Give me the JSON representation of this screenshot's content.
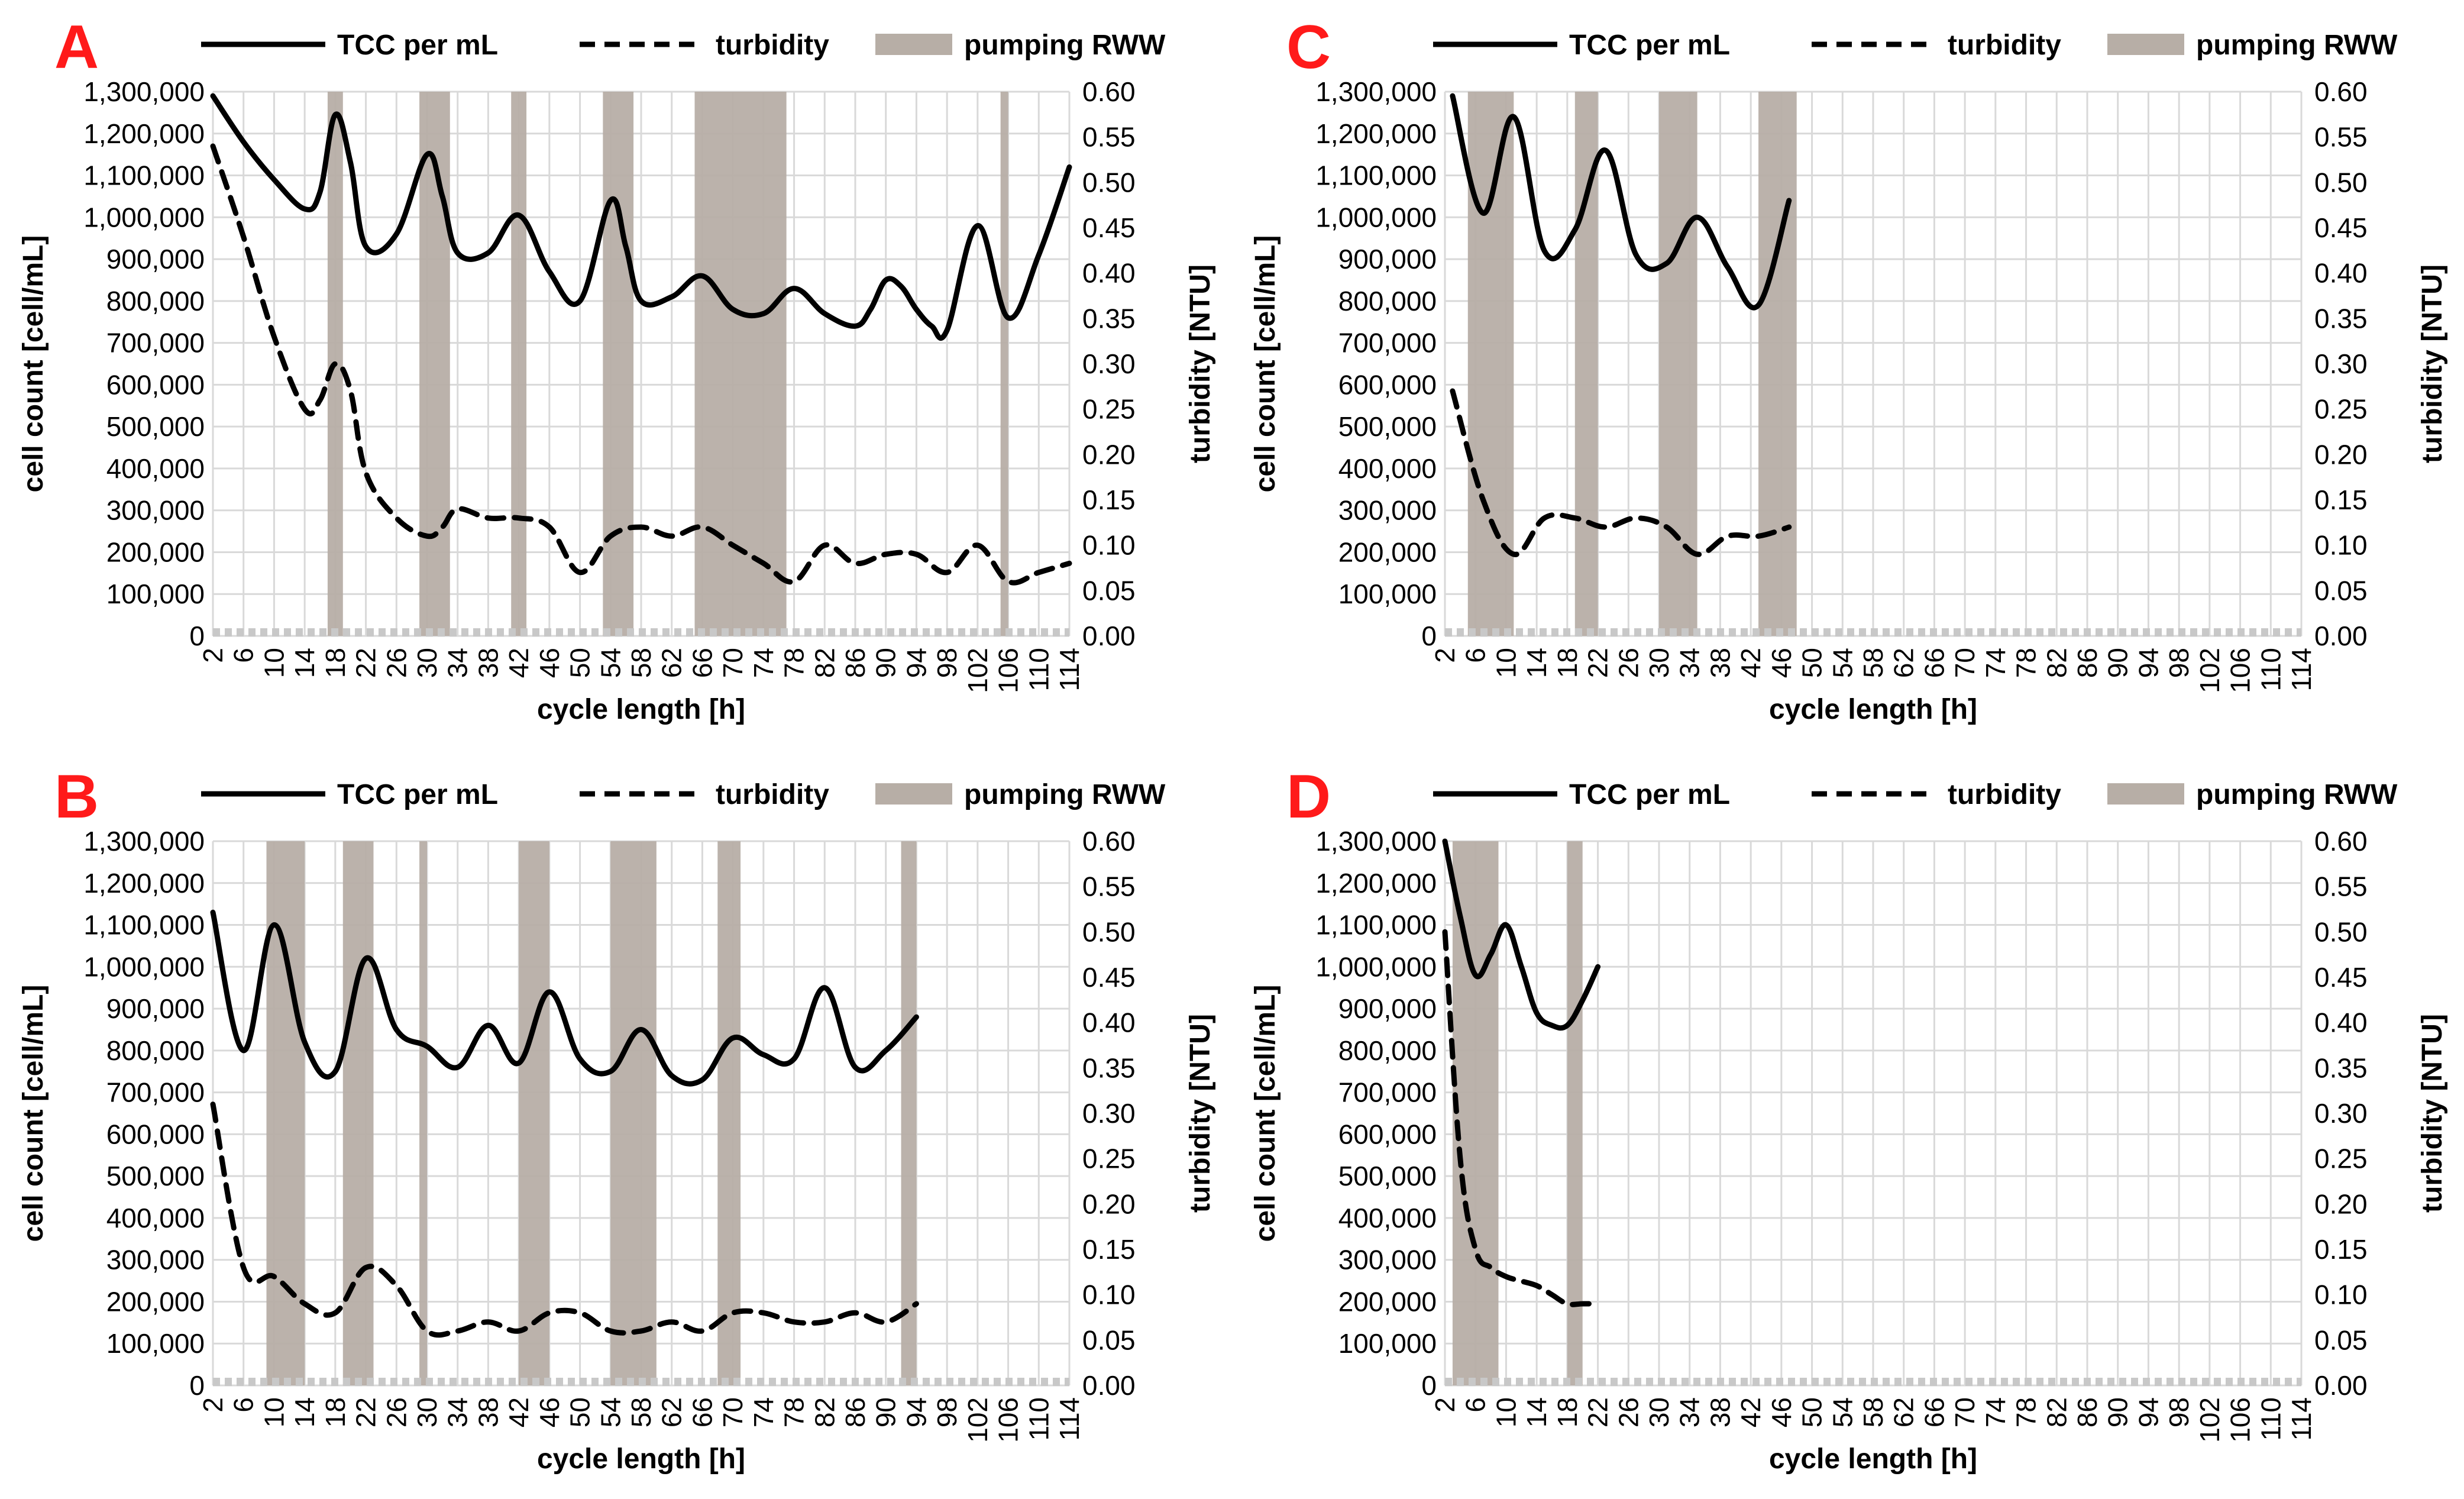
{
  "chart_data": [
    {
      "type": "line",
      "panel_label": "A",
      "xlabel": "cycle length [h]",
      "ylabel": "cell count [cell/mL]",
      "y2label": "turbidity [NTU]",
      "x_ticks": [
        "2",
        "6",
        "10",
        "14",
        "18",
        "22",
        "26",
        "30",
        "34",
        "38",
        "42",
        "46",
        "50",
        "54",
        "58",
        "62",
        "66",
        "70",
        "74",
        "78",
        "82",
        "86",
        "90",
        "94",
        "98",
        "102",
        "106",
        "110",
        "114"
      ],
      "y_ticks": [
        "0",
        "100,000",
        "200,000",
        "300,000",
        "400,000",
        "500,000",
        "600,000",
        "700,000",
        "800,000",
        "900,000",
        "1,000,000",
        "1,100,000",
        "1,200,000",
        "1,300,000"
      ],
      "y2_ticks": [
        "0.00",
        "0.05",
        "0.10",
        "0.15",
        "0.20",
        "0.25",
        "0.30",
        "0.35",
        "0.40",
        "0.45",
        "0.50",
        "0.55",
        "0.60"
      ],
      "xlim": [
        2,
        114
      ],
      "ylim": [
        0,
        1300000
      ],
      "y2lim": [
        0,
        0.6
      ],
      "legend": [
        {
          "label": "TCC per mL",
          "style": "solid"
        },
        {
          "label": "turbidity",
          "style": "dashed"
        },
        {
          "label": "pumping RWW",
          "style": "band"
        }
      ],
      "series": [
        {
          "name": "TCC per mL",
          "axis": "left",
          "x": [
            2,
            6,
            10,
            14,
            16,
            18,
            20,
            22,
            26,
            30,
            32,
            34,
            38,
            42,
            46,
            50,
            54,
            56,
            58,
            62,
            66,
            70,
            74,
            78,
            82,
            86,
            88,
            90,
            92,
            94,
            96,
            98,
            102,
            106,
            110,
            114
          ],
          "y": [
            1290000,
            1180000,
            1090000,
            1020000,
            1060000,
            1245000,
            1130000,
            930000,
            960000,
            1150000,
            1050000,
            915000,
            915000,
            1005000,
            870000,
            800000,
            1040000,
            930000,
            800000,
            810000,
            860000,
            780000,
            770000,
            830000,
            770000,
            740000,
            780000,
            850000,
            835000,
            780000,
            740000,
            730000,
            980000,
            760000,
            910000,
            1120000
          ]
        },
        {
          "name": "turbidity",
          "axis": "right",
          "x": [
            2,
            6,
            10,
            14,
            16,
            18,
            20,
            22,
            26,
            30,
            32,
            34,
            38,
            42,
            46,
            50,
            54,
            58,
            62,
            66,
            70,
            74,
            78,
            82,
            86,
            90,
            94,
            98,
            102,
            106,
            110,
            114
          ],
          "y": [
            0.54,
            0.44,
            0.33,
            0.25,
            0.26,
            0.3,
            0.27,
            0.18,
            0.13,
            0.11,
            0.12,
            0.14,
            0.13,
            0.13,
            0.12,
            0.07,
            0.11,
            0.12,
            0.11,
            0.12,
            0.1,
            0.08,
            0.06,
            0.1,
            0.08,
            0.09,
            0.09,
            0.07,
            0.1,
            0.06,
            0.07,
            0.08
          ]
        }
      ],
      "pumping_bands": [
        [
          17,
          19
        ],
        [
          29,
          33
        ],
        [
          41,
          43
        ],
        [
          53,
          57
        ],
        [
          65,
          77
        ],
        [
          105,
          106
        ]
      ]
    },
    {
      "type": "line",
      "panel_label": "B",
      "xlabel": "cycle length [h]",
      "ylabel": "cell count [cell/mL]",
      "y2label": "turbidity [NTU]",
      "x_ticks": [
        "2",
        "6",
        "10",
        "14",
        "18",
        "22",
        "26",
        "30",
        "34",
        "38",
        "42",
        "46",
        "50",
        "54",
        "58",
        "62",
        "66",
        "70",
        "74",
        "78",
        "82",
        "86",
        "90",
        "94",
        "98",
        "102",
        "106",
        "110",
        "114"
      ],
      "y_ticks": [
        "0",
        "100,000",
        "200,000",
        "300,000",
        "400,000",
        "500,000",
        "600,000",
        "700,000",
        "800,000",
        "900,000",
        "1,000,000",
        "1,100,000",
        "1,200,000",
        "1,300,000"
      ],
      "y2_ticks": [
        "0.00",
        "0.05",
        "0.10",
        "0.15",
        "0.20",
        "0.25",
        "0.30",
        "0.35",
        "0.40",
        "0.45",
        "0.50",
        "0.55",
        "0.60"
      ],
      "xlim": [
        2,
        114
      ],
      "ylim": [
        0,
        1300000
      ],
      "y2lim": [
        0,
        0.6
      ],
      "legend": [
        {
          "label": "TCC per mL",
          "style": "solid"
        },
        {
          "label": "turbidity",
          "style": "dashed"
        },
        {
          "label": "pumping RWW",
          "style": "band"
        }
      ],
      "series": [
        {
          "name": "TCC per mL",
          "axis": "left",
          "x": [
            2,
            6,
            10,
            14,
            18,
            22,
            26,
            30,
            34,
            38,
            42,
            46,
            50,
            54,
            58,
            62,
            66,
            70,
            74,
            78,
            82,
            86,
            90,
            94
          ],
          "y": [
            1130000,
            800000,
            1100000,
            820000,
            750000,
            1020000,
            850000,
            810000,
            760000,
            860000,
            770000,
            940000,
            780000,
            750000,
            850000,
            740000,
            730000,
            830000,
            790000,
            780000,
            950000,
            760000,
            800000,
            880000
          ]
        },
        {
          "name": "turbidity",
          "axis": "right",
          "x": [
            2,
            6,
            10,
            14,
            18,
            22,
            26,
            30,
            34,
            38,
            42,
            46,
            50,
            54,
            58,
            62,
            66,
            70,
            74,
            78,
            82,
            86,
            90,
            94
          ],
          "y": [
            0.31,
            0.13,
            0.12,
            0.09,
            0.08,
            0.13,
            0.11,
            0.06,
            0.06,
            0.07,
            0.06,
            0.08,
            0.08,
            0.06,
            0.06,
            0.07,
            0.06,
            0.08,
            0.08,
            0.07,
            0.07,
            0.08,
            0.07,
            0.09
          ]
        }
      ],
      "pumping_bands": [
        [
          9,
          14
        ],
        [
          19,
          23
        ],
        [
          29,
          30
        ],
        [
          42,
          46
        ],
        [
          54,
          60
        ],
        [
          68,
          71
        ],
        [
          92,
          94
        ]
      ]
    },
    {
      "type": "line",
      "panel_label": "C",
      "xlabel": "cycle length [h]",
      "ylabel": "cell count [cell/mL]",
      "y2label": "turbidity [NTU]",
      "x_ticks": [
        "2",
        "6",
        "10",
        "14",
        "18",
        "22",
        "26",
        "30",
        "34",
        "38",
        "42",
        "46",
        "50",
        "54",
        "58",
        "62",
        "66",
        "70",
        "74",
        "78",
        "82",
        "86",
        "90",
        "94",
        "98",
        "102",
        "106",
        "110",
        "114"
      ],
      "y_ticks": [
        "0",
        "100,000",
        "200,000",
        "300,000",
        "400,000",
        "500,000",
        "600,000",
        "700,000",
        "800,000",
        "900,000",
        "1,000,000",
        "1,100,000",
        "1,200,000",
        "1,300,000"
      ],
      "y2_ticks": [
        "0.00",
        "0.05",
        "0.10",
        "0.15",
        "0.20",
        "0.25",
        "0.30",
        "0.35",
        "0.40",
        "0.45",
        "0.50",
        "0.55",
        "0.60"
      ],
      "xlim": [
        2,
        114
      ],
      "ylim": [
        0,
        1300000
      ],
      "y2lim": [
        0,
        0.6
      ],
      "legend": [
        {
          "label": "TCC per mL",
          "style": "solid"
        },
        {
          "label": "turbidity",
          "style": "dashed"
        },
        {
          "label": "pumping RWW",
          "style": "band"
        }
      ],
      "series": [
        {
          "name": "TCC per mL",
          "axis": "left",
          "x": [
            3,
            7,
            11,
            15,
            19,
            23,
            27,
            31,
            35,
            39,
            43,
            47
          ],
          "y": [
            1290000,
            1010000,
            1240000,
            920000,
            970000,
            1160000,
            910000,
            890000,
            1000000,
            880000,
            790000,
            1040000
          ]
        },
        {
          "name": "turbidity",
          "axis": "right",
          "x": [
            3,
            7,
            11,
            15,
            19,
            23,
            27,
            31,
            35,
            39,
            43,
            47
          ],
          "y": [
            0.27,
            0.15,
            0.09,
            0.13,
            0.13,
            0.12,
            0.13,
            0.12,
            0.09,
            0.11,
            0.11,
            0.12
          ]
        }
      ],
      "pumping_bands": [
        [
          5,
          11
        ],
        [
          19,
          22
        ],
        [
          30,
          35
        ],
        [
          43,
          48
        ]
      ]
    },
    {
      "type": "line",
      "panel_label": "D",
      "xlabel": "cycle length [h]",
      "ylabel": "cell count [cell/mL]",
      "y2label": "turbidity [NTU]",
      "x_ticks": [
        "2",
        "6",
        "10",
        "14",
        "18",
        "22",
        "26",
        "30",
        "34",
        "38",
        "42",
        "46",
        "50",
        "54",
        "58",
        "62",
        "66",
        "70",
        "74",
        "78",
        "82",
        "86",
        "90",
        "94",
        "98",
        "102",
        "106",
        "110",
        "114"
      ],
      "y_ticks": [
        "0",
        "100,000",
        "200,000",
        "300,000",
        "400,000",
        "500,000",
        "600,000",
        "700,000",
        "800,000",
        "900,000",
        "1,000,000",
        "1,100,000",
        "1,200,000",
        "1,300,000"
      ],
      "y2_ticks": [
        "0.00",
        "0.05",
        "0.10",
        "0.15",
        "0.20",
        "0.25",
        "0.30",
        "0.35",
        "0.40",
        "0.45",
        "0.50",
        "0.55",
        "0.60"
      ],
      "xlim": [
        2,
        114
      ],
      "ylim": [
        0,
        1300000
      ],
      "y2lim": [
        0,
        0.6
      ],
      "legend": [
        {
          "label": "TCC per mL",
          "style": "solid"
        },
        {
          "label": "turbidity",
          "style": "dashed"
        },
        {
          "label": "pumping RWW",
          "style": "band"
        }
      ],
      "series": [
        {
          "name": "TCC per mL",
          "axis": "left",
          "x": [
            2,
            4,
            6,
            8,
            10,
            12,
            14,
            16,
            18,
            20,
            22
          ],
          "y": [
            1300000,
            1120000,
            980000,
            1030000,
            1100000,
            1000000,
            890000,
            860000,
            860000,
            920000,
            1000000
          ]
        },
        {
          "name": "turbidity",
          "axis": "right",
          "x": [
            2,
            4,
            6,
            8,
            10,
            12,
            14,
            16,
            18,
            20,
            22
          ],
          "y": [
            0.5,
            0.25,
            0.15,
            0.13,
            0.12,
            0.115,
            0.11,
            0.1,
            0.09,
            0.09,
            0.09
          ]
        }
      ],
      "pumping_bands": [
        [
          3,
          9
        ],
        [
          18,
          20
        ]
      ]
    }
  ]
}
